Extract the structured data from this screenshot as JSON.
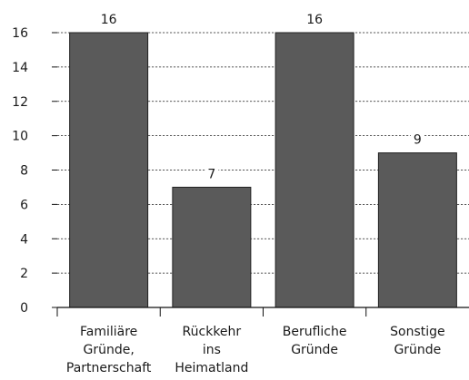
{
  "chart_data": {
    "type": "bar",
    "categories": [
      [
        "Familiäre",
        "Gründe,",
        "Partnerschaft"
      ],
      [
        "Rückkehr",
        "ins",
        "Heimatland"
      ],
      [
        "Berufliche",
        "Gründe"
      ],
      [
        "Sonstige",
        "Gründe"
      ]
    ],
    "values": [
      16,
      7,
      16,
      9
    ],
    "data_labels": [
      "16",
      "7",
      "16",
      "9"
    ],
    "title": "",
    "xlabel": "",
    "ylabel": "",
    "ylim": [
      0,
      16
    ],
    "yticks": [
      0,
      2,
      4,
      6,
      8,
      10,
      12,
      14,
      16
    ],
    "grid": true,
    "bar_color": "#5a5a5a"
  }
}
